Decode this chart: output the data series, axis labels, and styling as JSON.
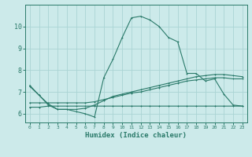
{
  "xlabel": "Humidex (Indice chaleur)",
  "background_color": "#cceaea",
  "grid_color": "#aad4d4",
  "line_color": "#2a7a6a",
  "spine_color": "#2a7a6a",
  "xlim": [
    -0.5,
    23.5
  ],
  "ylim": [
    5.6,
    11.0
  ],
  "xticks": [
    0,
    1,
    2,
    3,
    4,
    5,
    6,
    7,
    8,
    9,
    10,
    11,
    12,
    13,
    14,
    15,
    16,
    17,
    18,
    19,
    20,
    21,
    22,
    23
  ],
  "yticks": [
    6,
    7,
    8,
    9,
    10
  ],
  "line1_x": [
    0,
    1,
    2,
    3,
    4,
    5,
    6,
    7,
    8,
    9,
    10,
    11,
    12,
    13,
    14,
    15,
    16,
    17,
    18,
    19,
    20,
    21,
    22,
    23
  ],
  "line1_y": [
    7.3,
    6.85,
    6.4,
    6.2,
    6.2,
    6.1,
    6.0,
    5.85,
    7.65,
    8.5,
    9.5,
    10.4,
    10.47,
    10.3,
    10.0,
    9.5,
    9.3,
    7.85,
    7.85,
    7.5,
    7.6,
    6.9,
    6.4,
    6.35
  ],
  "line2_x": [
    0,
    1,
    2,
    3,
    4,
    5,
    6,
    7,
    8,
    9,
    10,
    11,
    12,
    13,
    14,
    15,
    16,
    17,
    18,
    19,
    20,
    21,
    22,
    23
  ],
  "line2_y": [
    6.5,
    6.5,
    6.5,
    6.5,
    6.5,
    6.5,
    6.5,
    6.55,
    6.65,
    6.75,
    6.85,
    6.95,
    7.0,
    7.1,
    7.2,
    7.3,
    7.4,
    7.5,
    7.55,
    7.6,
    7.65,
    7.65,
    7.6,
    7.6
  ],
  "line3_x": [
    0,
    1,
    2,
    3,
    4,
    5,
    6,
    7,
    8,
    9,
    10,
    11,
    12,
    13,
    14,
    15,
    16,
    17,
    18,
    19,
    20,
    21,
    22,
    23
  ],
  "line3_y": [
    6.3,
    6.3,
    6.35,
    6.35,
    6.35,
    6.35,
    6.35,
    6.35,
    6.35,
    6.35,
    6.35,
    6.35,
    6.35,
    6.35,
    6.35,
    6.35,
    6.35,
    6.35,
    6.35,
    6.35,
    6.35,
    6.35,
    6.35,
    6.35
  ],
  "line4_x": [
    0,
    1,
    2,
    3,
    4,
    5,
    6,
    7,
    8,
    9,
    10,
    11,
    12,
    13,
    14,
    15,
    16,
    17,
    18,
    19,
    20,
    21,
    22,
    23
  ],
  "line4_y": [
    7.25,
    6.85,
    6.45,
    6.2,
    6.2,
    6.2,
    6.25,
    6.4,
    6.6,
    6.8,
    6.9,
    7.0,
    7.1,
    7.2,
    7.3,
    7.4,
    7.5,
    7.6,
    7.7,
    7.75,
    7.8,
    7.8,
    7.75,
    7.7
  ]
}
